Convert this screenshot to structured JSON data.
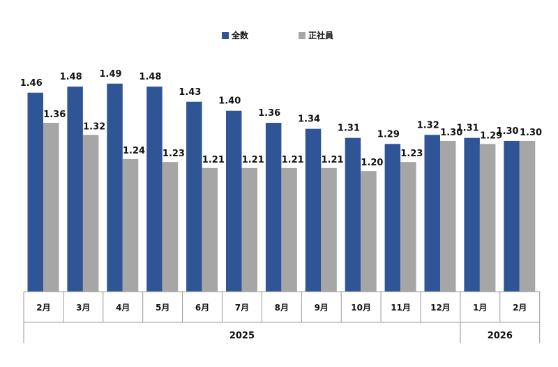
{
  "chart_data": {
    "type": "bar",
    "categories": [
      "2月",
      "3月",
      "4月",
      "5月",
      "6月",
      "7月",
      "8月",
      "9月",
      "10月",
      "11月",
      "12月",
      "1月",
      "2月"
    ],
    "years": [
      {
        "label": "2025",
        "start": 0,
        "end": 10
      },
      {
        "label": "2026",
        "start": 11,
        "end": 12
      }
    ],
    "series": [
      {
        "name": "全数",
        "color": "#2F5597",
        "values": [
          1.46,
          1.48,
          1.49,
          1.48,
          1.43,
          1.4,
          1.36,
          1.34,
          1.31,
          1.29,
          1.32,
          1.31,
          1.3
        ]
      },
      {
        "name": "正社員",
        "color": "#A6A6A6",
        "values": [
          1.36,
          1.32,
          1.24,
          1.23,
          1.21,
          1.21,
          1.21,
          1.21,
          1.2,
          1.23,
          1.3,
          1.29,
          1.3
        ]
      }
    ],
    "value_labels": {
      "series0": [
        "1.46",
        "1.48",
        "1.49",
        "1.48",
        "1.43",
        "1.40",
        "1.36",
        "1.34",
        "1.31",
        "1.29",
        "1.32",
        "1.31",
        "1.30"
      ],
      "series1": [
        "1.36",
        "1.32",
        "1.24",
        "1.23",
        "1.21",
        "1.21",
        "1.21",
        "1.21",
        "1.20",
        "1.23",
        "1.30",
        "1.29",
        "1.30"
      ]
    },
    "ylim": [
      0.8,
      1.5
    ],
    "grid": false,
    "legend_position": "top-center"
  }
}
